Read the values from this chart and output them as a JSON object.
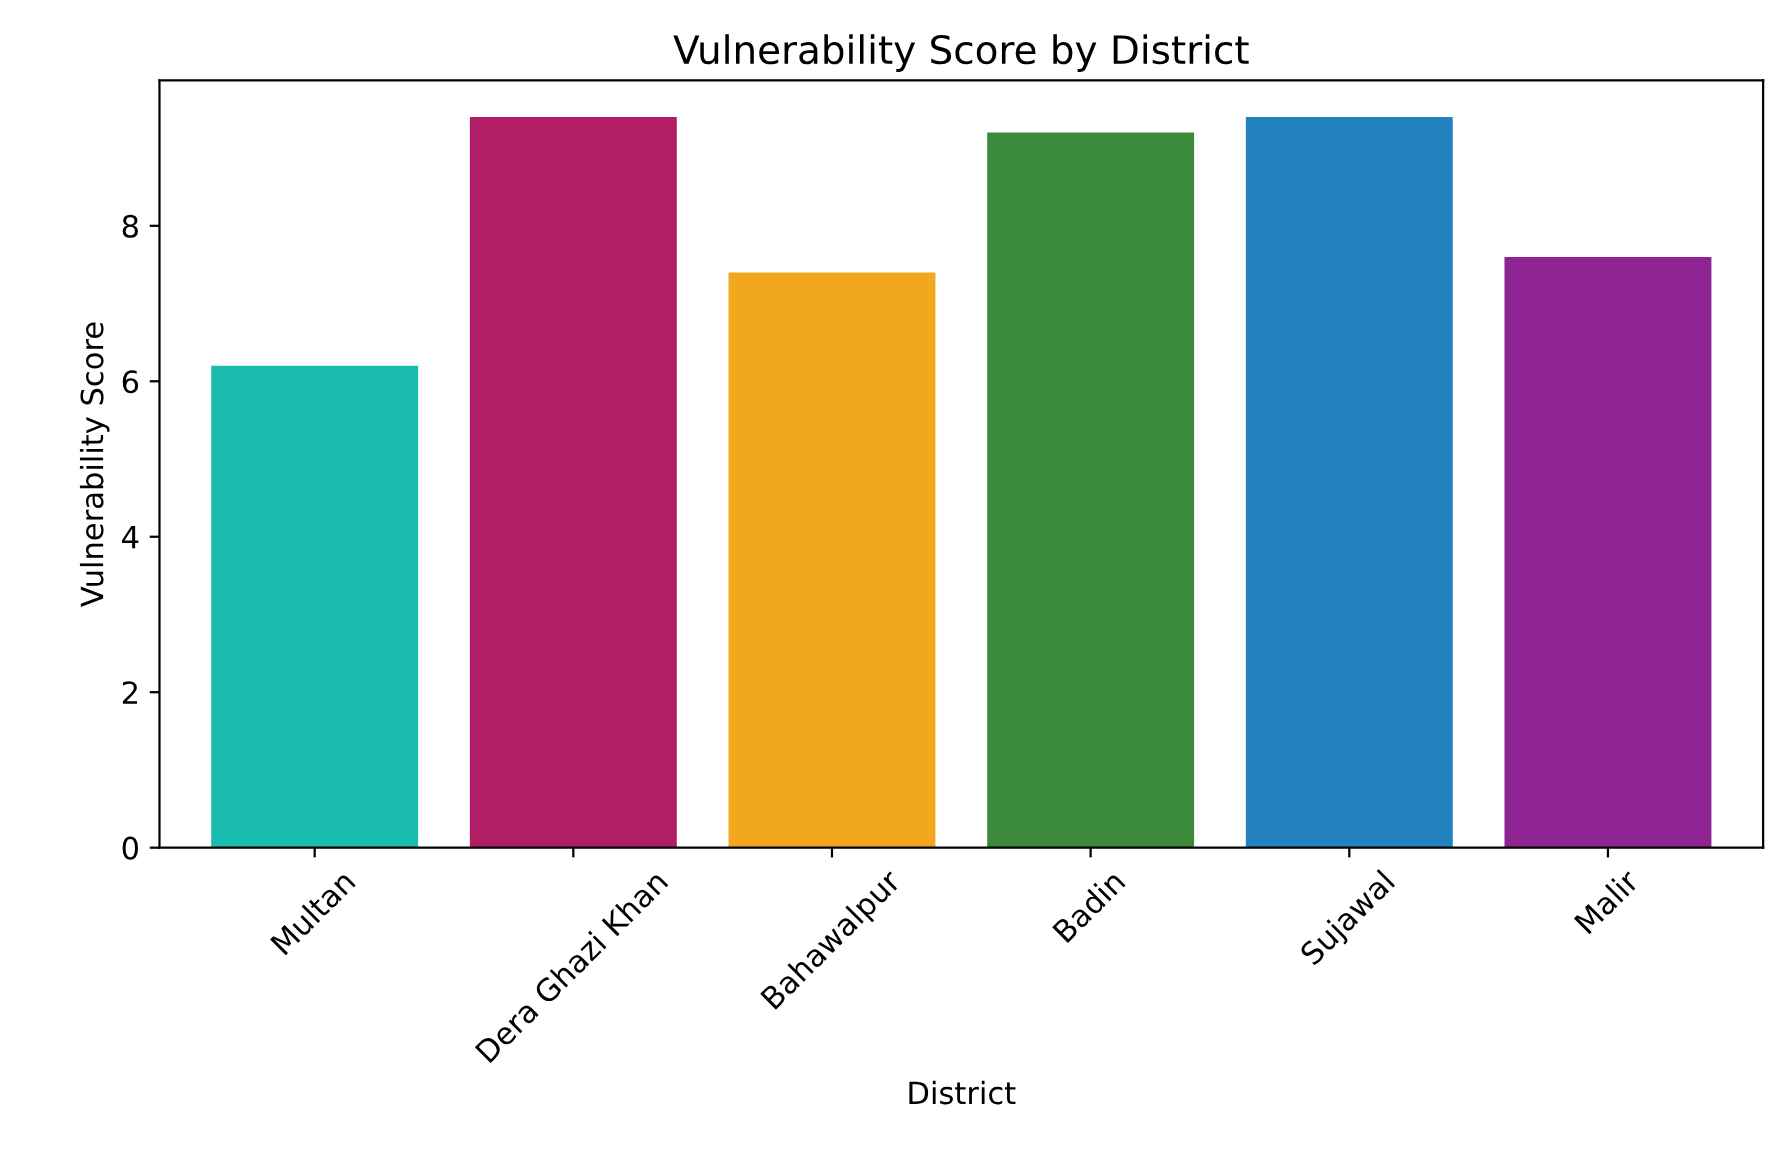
{
  "chart_data": {
    "type": "bar",
    "title": "Vulnerability Score by District",
    "xlabel": "District",
    "ylabel": "Vulnerability Score",
    "categories": [
      "Multan",
      "Dera Ghazi Khan",
      "Bahawalpur",
      "Badin",
      "Sujawal",
      "Malir"
    ],
    "values": [
      6.2,
      9.4,
      7.4,
      9.2,
      9.4,
      7.6
    ],
    "colors": [
      "#1bbcb0",
      "#b01e66",
      "#f2a81d",
      "#3a8a3a",
      "#2383bf",
      "#8e2491"
    ],
    "ylim": [
      0,
      9.87
    ],
    "yticks": [
      0,
      2,
      4,
      6,
      8
    ],
    "grid": false
  }
}
